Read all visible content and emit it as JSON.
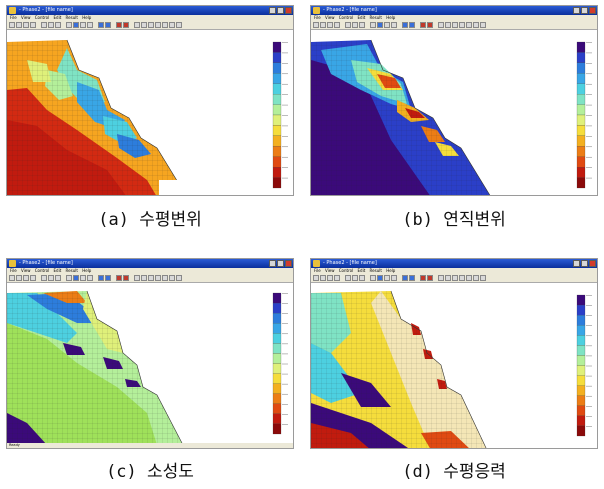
{
  "panels": [
    {
      "id": "a",
      "window_title": "- Phase2 - [file name]",
      "menu": [
        "File",
        "View",
        "Control",
        "Edit",
        "Result",
        "Help"
      ],
      "caption": "(a) 수평변위",
      "status": "",
      "palette": "displacement"
    },
    {
      "id": "b",
      "window_title": "- Phase2 - [file name]",
      "menu": [
        "File",
        "View",
        "Control",
        "Edit",
        "Result",
        "Help"
      ],
      "caption": "(b) 연직변위",
      "status": "",
      "palette": "displacement"
    },
    {
      "id": "c",
      "window_title": "- Phase2 - [file name]",
      "menu": [
        "File",
        "View",
        "Control",
        "Edit",
        "Result",
        "Help"
      ],
      "caption": "(c) 소성도",
      "status": "Ready",
      "palette": "plastic"
    },
    {
      "id": "d",
      "window_title": "- Phase2 - [file name]",
      "menu": [
        "File",
        "View",
        "Control",
        "Edit",
        "Result",
        "Help"
      ],
      "caption": "(d) 수평응력",
      "status": "",
      "palette": "stress"
    }
  ],
  "legend_colors": [
    "#3b0a7a",
    "#2b3fc8",
    "#2d7ddc",
    "#39a6e6",
    "#4dd0e0",
    "#7fe3c4",
    "#b4ef9a",
    "#dff07a",
    "#f5dd3c",
    "#f3b020",
    "#ec7d16",
    "#e04a12",
    "#c11b0f",
    "#8b0a0a"
  ],
  "colors": {
    "window_blue": "#1248c4",
    "chrome": "#ece9d8"
  }
}
